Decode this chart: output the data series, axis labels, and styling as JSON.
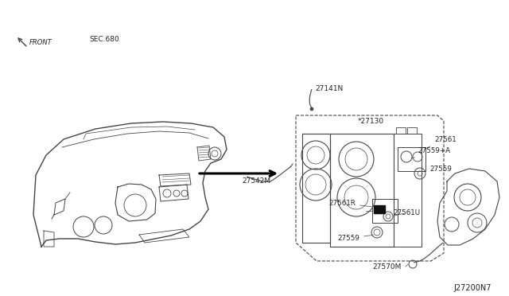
{
  "bg_color": "#ffffff",
  "line_color": "#444444",
  "text_color": "#222222",
  "fig_width": 6.4,
  "fig_height": 3.72,
  "dpi": 100,
  "labels": {
    "front": "FRONT",
    "sec680": "SEC.680",
    "part27130": "*27130",
    "part27141": "27141N",
    "part27542": "27542M",
    "part27561": "27561",
    "part27559A": "27559+A",
    "part27561R": "27561R",
    "part27561U": "27561U",
    "part27559_1": "27559",
    "part27559_2": "27559",
    "part27570": "27570M",
    "diagram_id": "J27200N7"
  }
}
